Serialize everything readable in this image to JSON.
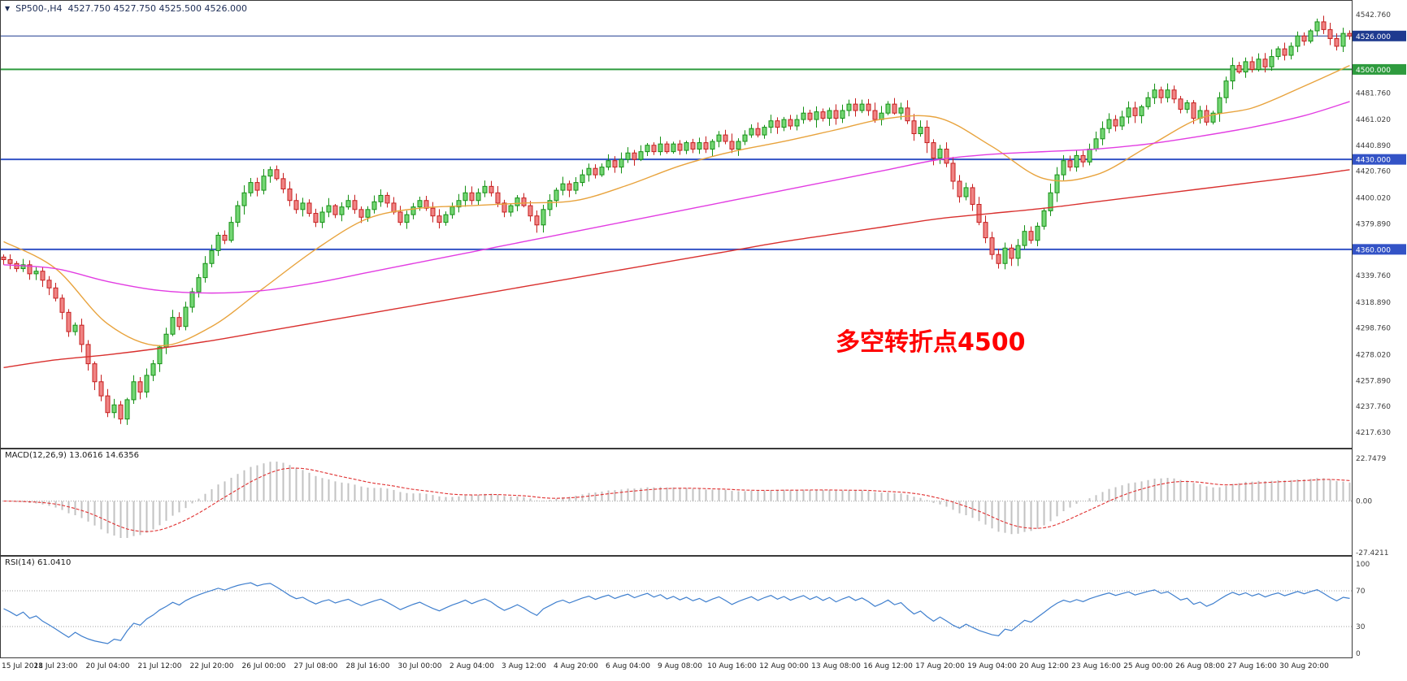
{
  "header": {
    "symbol": "SP500-,H4",
    "ohlc": "4527.750 4527.750 4525.500 4526.000",
    "marker": "▼"
  },
  "annotation": {
    "text": "多空转折点4500",
    "color": "#ff0000"
  },
  "price_axis": {
    "labels": [
      "4542.760",
      "4481.760",
      "4461.020",
      "4440.890",
      "4420.760",
      "4400.020",
      "4379.890",
      "4339.760",
      "4318.890",
      "4298.760",
      "4278.020",
      "4257.890",
      "4237.760",
      "4217.630"
    ],
    "tags": [
      {
        "label": "4526.000",
        "value": 4526,
        "bg": "#1e3a8f"
      },
      {
        "label": "4500.000",
        "value": 4500,
        "bg": "#2e9b3e"
      },
      {
        "label": "4430.000",
        "value": 4430,
        "bg": "#3353c6"
      },
      {
        "label": "4360.000",
        "value": 4360,
        "bg": "#3353c6"
      }
    ]
  },
  "hlines": [
    {
      "value": 4526,
      "color": "#1e3a8f",
      "width": 1
    },
    {
      "value": 4500,
      "color": "#2e9b3e",
      "width": 2
    },
    {
      "value": 4430,
      "color": "#3353c6",
      "width": 2
    },
    {
      "value": 4360,
      "color": "#3353c6",
      "width": 2
    }
  ],
  "macd_panel": {
    "label": "MACD(12,26,9) 13.0616 14.6356",
    "axis": [
      "22.7479",
      "0.00",
      "-27.4211"
    ]
  },
  "rsi_panel": {
    "label": "RSI(14) 61.0410",
    "axis": [
      "100",
      "70",
      "30",
      "0"
    ],
    "levels": [
      70,
      30
    ]
  },
  "time_axis": {
    "bars_per_label": 8,
    "labels": [
      "15 Jul 2021",
      "18 Jul 23:00",
      "20 Jul 04:00",
      "21 Jul 12:00",
      "22 Jul 20:00",
      "26 Jul 00:00",
      "27 Jul 08:00",
      "28 Jul 16:00",
      "30 Jul 00:00",
      "2 Aug 04:00",
      "3 Aug 12:00",
      "4 Aug 20:00",
      "6 Aug 04:00",
      "9 Aug 08:00",
      "10 Aug 16:00",
      "12 Aug 00:00",
      "13 Aug 08:00",
      "16 Aug 12:00",
      "17 Aug 20:00",
      "19 Aug 04:00",
      "20 Aug 12:00",
      "23 Aug 16:00",
      "25 Aug 00:00",
      "26 Aug 08:00",
      "27 Aug 16:00",
      "30 Aug 20:00"
    ]
  },
  "colors": {
    "up_fill": "#74d674",
    "up_border": "#159015",
    "down_fill": "#f08484",
    "down_border": "#c61f1f",
    "macd_hist": "#c2c2c2",
    "macd_signal": "#e03030",
    "rsi_line": "#3f7fce",
    "level_line": "#a0a0a0",
    "border": "#3a3a3a"
  },
  "chart_data": {
    "type": "candlestick",
    "symbol": "SP500-",
    "timeframe": "H4",
    "price_range": [
      4205,
      4554
    ],
    "first_open": 4354,
    "closes": [
      4352,
      4349,
      4345,
      4348,
      4341,
      4343,
      4336,
      4330,
      4322,
      4311,
      4296,
      4301,
      4286,
      4271,
      4257,
      4246,
      4233,
      4239,
      4228,
      4243,
      4257,
      4249,
      4262,
      4271,
      4284,
      4294,
      4307,
      4300,
      4315,
      4327,
      4338,
      4349,
      4359,
      4371,
      4367,
      4381,
      4394,
      4404,
      4412,
      4406,
      4417,
      4422,
      4415,
      4407,
      4398,
      4391,
      4396,
      4388,
      4381,
      4389,
      4394,
      4387,
      4393,
      4398,
      4391,
      4385,
      4391,
      4397,
      4402,
      4396,
      4389,
      4381,
      4387,
      4393,
      4398,
      4392,
      4386,
      4381,
      4387,
      4393,
      4398,
      4404,
      4398,
      4404,
      4409,
      4404,
      4396,
      4389,
      4394,
      4400,
      4394,
      4386,
      4379,
      4391,
      4398,
      4406,
      4411,
      4406,
      4412,
      4418,
      4423,
      4418,
      4424,
      4429,
      4424,
      4430,
      4435,
      4430,
      4436,
      4441,
      4436,
      4442,
      4436,
      4442,
      4437,
      4443,
      4438,
      4443,
      4438,
      4444,
      4449,
      4444,
      4438,
      4444,
      4449,
      4454,
      4449,
      4455,
      4460,
      4455,
      4461,
      4456,
      4461,
      4466,
      4461,
      4467,
      4462,
      4468,
      4462,
      4468,
      4473,
      4468,
      4473,
      4468,
      4461,
      4466,
      4473,
      4466,
      4470,
      4460,
      4450,
      4455,
      4443,
      4431,
      4438,
      4427,
      4413,
      4401,
      4408,
      4395,
      4381,
      4369,
      4356,
      4349,
      4361,
      4353,
      4363,
      4374,
      4367,
      4378,
      4390,
      4404,
      4418,
      4429,
      4424,
      4433,
      4428,
      4438,
      4446,
      4454,
      4461,
      4456,
      4463,
      4470,
      4464,
      4471,
      4478,
      4484,
      4478,
      4484,
      4477,
      4469,
      4474,
      4462,
      4468,
      4459,
      4466,
      4478,
      4491,
      4503,
      4498,
      4506,
      4500,
      4508,
      4502,
      4510,
      4516,
      4511,
      4518,
      4526,
      4522,
      4530,
      4537,
      4531,
      4524,
      4518,
      4528,
      4526
    ],
    "ma_lines": [
      {
        "name": "fast",
        "color": "#e8a33d",
        "values": [
          4366,
          4345,
          4302,
          4285,
          4300,
          4330,
          4360,
          4384,
          4392,
          4394,
          4396,
          4398,
          4410,
          4425,
          4436,
          4444,
          4453,
          4462,
          4462,
          4440,
          4415,
          4418,
          4440,
          4462,
          4470,
          4487,
          4503
        ]
      },
      {
        "name": "medium",
        "color": "#e23de2",
        "values": [
          4348,
          4345,
          4335,
          4328,
          4326,
          4328,
          4334,
          4342,
          4350,
          4358,
          4366,
          4374,
          4382,
          4390,
          4398,
          4406,
          4414,
          4422,
          4430,
          4434,
          4436,
          4438,
          4442,
          4448,
          4455,
          4464,
          4475
        ]
      },
      {
        "name": "slow",
        "color": "#d9302e",
        "values": [
          4268,
          4274,
          4278,
          4283,
          4289,
          4296,
          4303,
          4310,
          4317,
          4324,
          4331,
          4338,
          4345,
          4352,
          4359,
          4366,
          4372,
          4378,
          4384,
          4388,
          4392,
          4397,
          4402,
          4407,
          4412,
          4417,
          4422
        ]
      }
    ],
    "macd": {
      "fast": 12,
      "slow": 26,
      "signal": 9,
      "scale": [
        -27.4211,
        22.7479
      ]
    },
    "rsi": {
      "period": 14,
      "scale": [
        0,
        100
      ]
    }
  }
}
